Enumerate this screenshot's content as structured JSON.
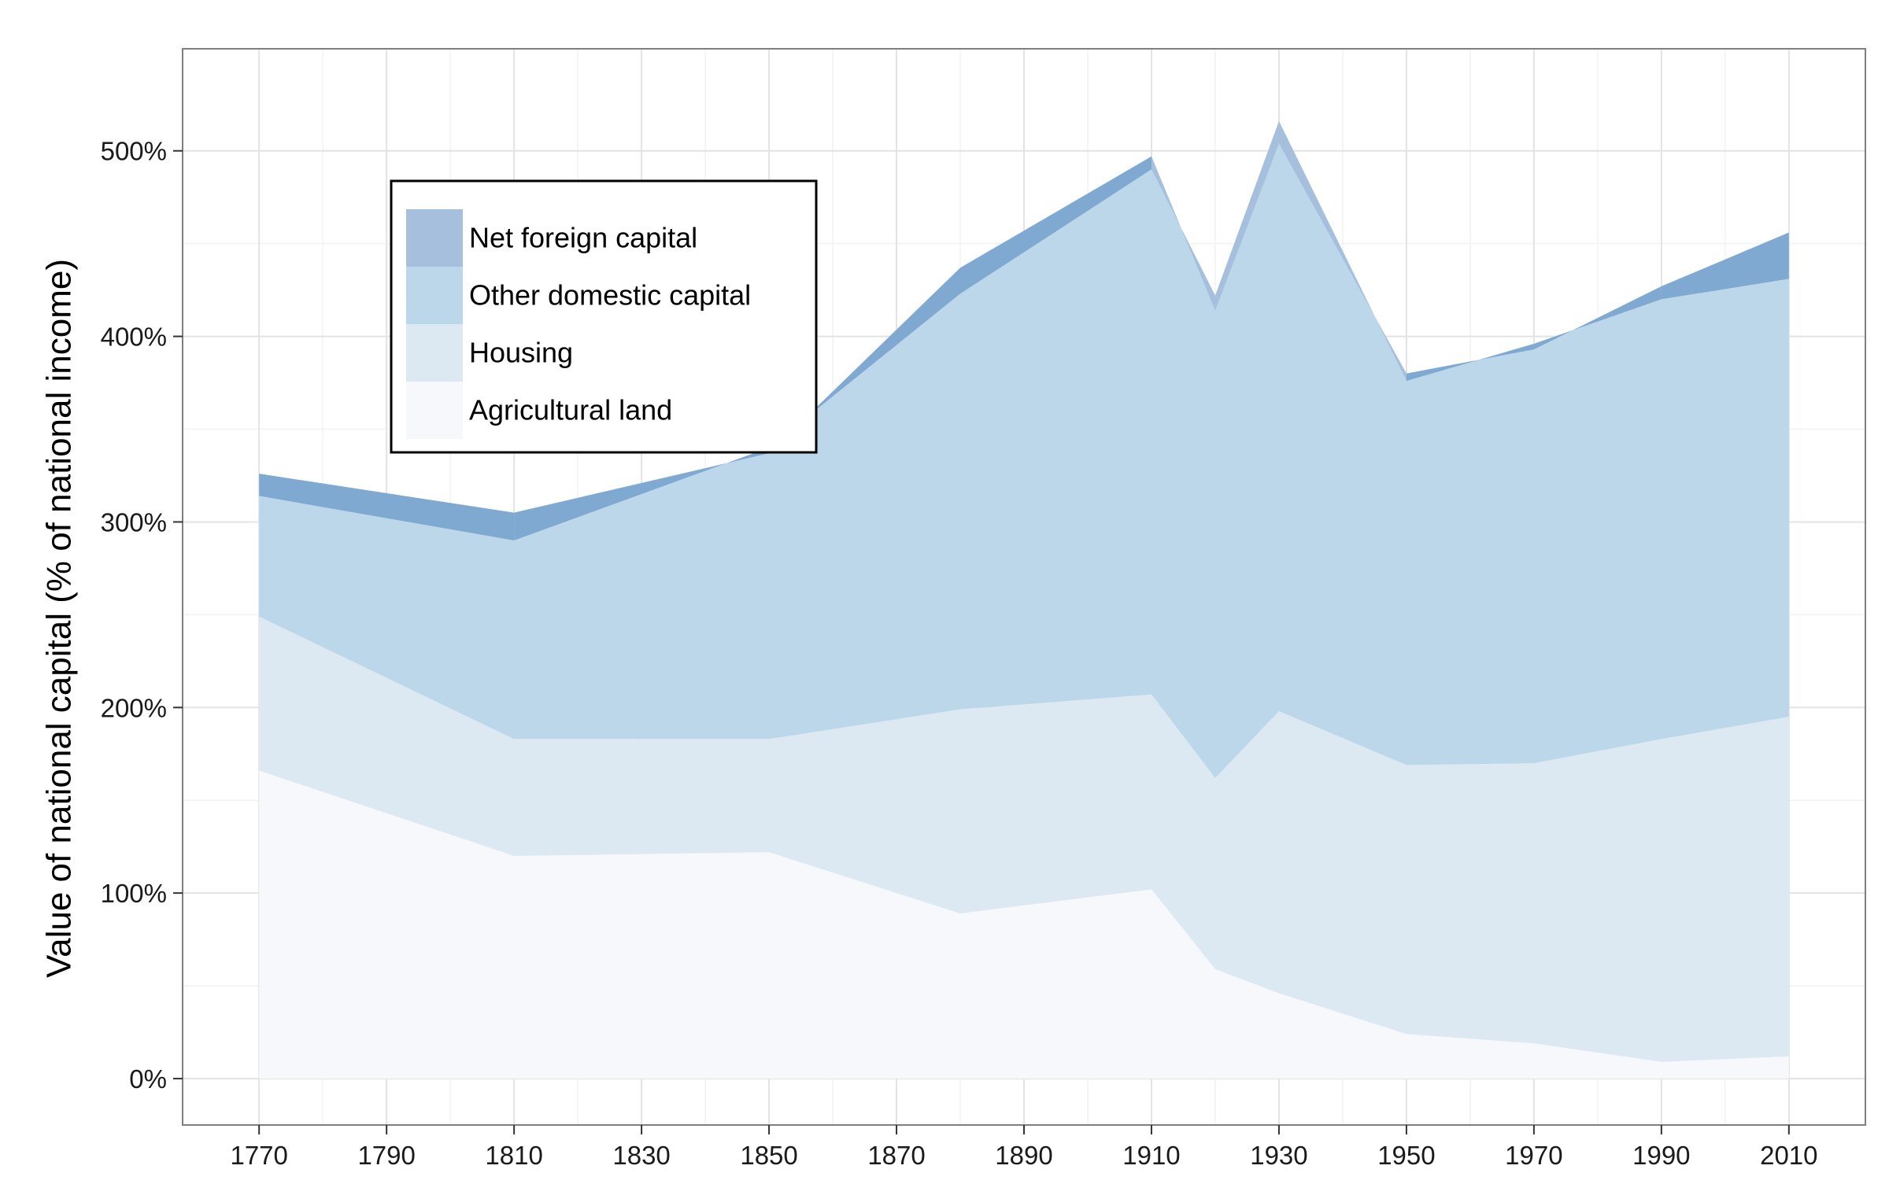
{
  "chart_data": {
    "type": "area",
    "stacked": true,
    "title": "",
    "xlabel": "",
    "ylabel": "Value of national capital (% of national income)",
    "x": [
      1770,
      1810,
      1850,
      1880,
      1910,
      1920,
      1930,
      1950,
      1970,
      1990,
      2010
    ],
    "x_ticks": [
      1770,
      1790,
      1810,
      1830,
      1850,
      1870,
      1890,
      1910,
      1930,
      1950,
      1970,
      1990,
      2010
    ],
    "x_tick_labels": [
      "1770",
      "1790",
      "1810",
      "1830",
      "1850",
      "1870",
      "1890",
      "1910",
      "1930",
      "1950",
      "1970",
      "1990",
      "2010"
    ],
    "xlim": [
      1758,
      2022
    ],
    "ylim": [
      -25,
      555
    ],
    "y_ticks": [
      0,
      100,
      200,
      300,
      400,
      500
    ],
    "y_tick_labels": [
      "0%",
      "100%",
      "200%",
      "300%",
      "400%",
      "500%"
    ],
    "grid": true,
    "legend_position": "top-left",
    "legend": [
      {
        "label": "Net foreign capital",
        "color": "#a6bfdd"
      },
      {
        "label": "Other domestic capital",
        "color": "#bcd6ea"
      },
      {
        "label": "Housing",
        "color": "#dde9f2"
      },
      {
        "label": "Agricultural land",
        "color": "#f6f8fc"
      }
    ],
    "series": [
      {
        "name": "Agricultural land",
        "color": "#f6f8fc",
        "values": [
          166,
          120,
          122,
          89,
          102,
          59,
          46,
          24,
          19,
          9,
          12
        ]
      },
      {
        "name": "Housing",
        "color": "#dde9f2",
        "values": [
          83,
          63,
          61,
          110,
          105,
          103,
          152,
          145,
          151,
          174,
          183
        ]
      },
      {
        "name": "Other domestic capital",
        "color": "#bcd6ea",
        "values": [
          65,
          107,
          157,
          224,
          283,
          260,
          318,
          207,
          226,
          237,
          236
        ]
      },
      {
        "name": "Net foreign capital",
        "color": "#7fa9d1",
        "values": [
          12,
          15,
          -3,
          14,
          7,
          -8,
          -12,
          4,
          -3,
          7,
          25
        ]
      }
    ],
    "colors": {
      "plot_border": "#7f7f7f",
      "grid_major": "#e3e3e3",
      "grid_minor": "#f2f2f2",
      "foreign_positive": "#7fa9d1",
      "foreign_negative": "#a6bfdd"
    }
  }
}
